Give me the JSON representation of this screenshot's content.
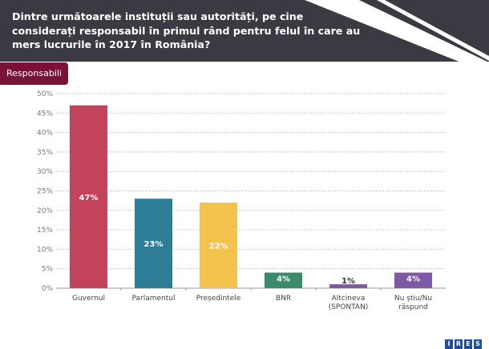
{
  "header": {
    "question": "Dintre următoarele instituții sau autorități, pe cine considerați responsabil în primul rând pentru felul în care au mers lucrurile în 2017 în România?"
  },
  "tag_label": "Responsabili",
  "logo_text": "IRES",
  "chart_data": {
    "type": "bar",
    "title": "Responsabili",
    "categories": [
      "Guvernul",
      "Parlamentul",
      "Președintele",
      "BNR",
      "Altcineva (SPONTAN)",
      "Nu știu/Nu răspund"
    ],
    "category_lines": [
      [
        "Guvernul"
      ],
      [
        "Parlamentul"
      ],
      [
        "Președintele"
      ],
      [
        "BNR"
      ],
      [
        "Altcineva",
        "(SPONTAN)"
      ],
      [
        "Nu știu/Nu",
        "răspund"
      ]
    ],
    "values": [
      47,
      23,
      22,
      4,
      1,
      4
    ],
    "labels": [
      "47%",
      "23%",
      "22%",
      "4%",
      "1%",
      "4%"
    ],
    "colors": [
      "#c2435a",
      "#2e7d97",
      "#f4c34e",
      "#3b8a6b",
      "#7e5aa6",
      "#7e5aa6"
    ],
    "ylim": [
      0,
      50
    ],
    "yticks": [
      "0%",
      "5%",
      "10%",
      "15%",
      "20%",
      "25%",
      "30%",
      "35%",
      "40%",
      "45%",
      "50%"
    ],
    "grid": true,
    "xlabel": "",
    "ylabel": ""
  }
}
